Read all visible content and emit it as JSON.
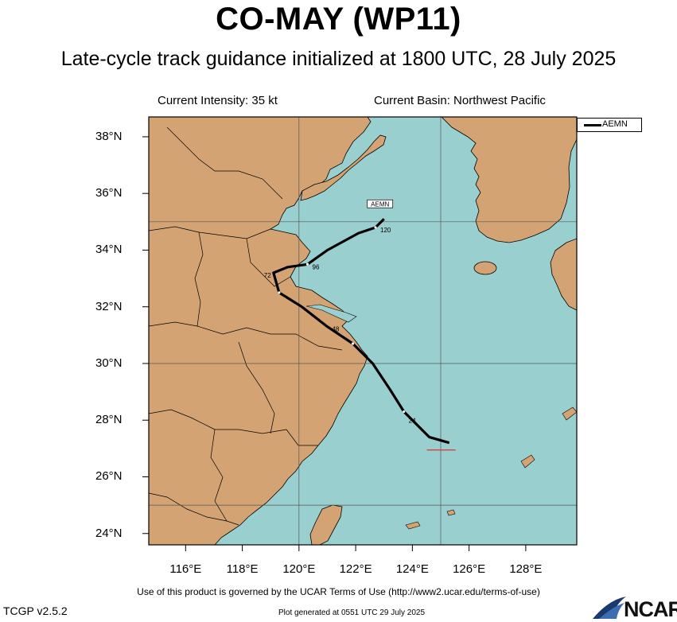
{
  "title": "CO-MAY (WP11)",
  "subtitle": "Late-cycle track guidance initialized at 1800 UTC, 28 July 2025",
  "current_intensity": "Current Intensity: 35 kt",
  "current_basin": "Current Basin: Northwest Pacific",
  "legend": {
    "label": "AEMN"
  },
  "track_label": "AEMN",
  "lat_labels": [
    "38°N",
    "36°N",
    "34°N",
    "32°N",
    "30°N",
    "28°N",
    "26°N",
    "24°N"
  ],
  "lon_labels": [
    "116°E",
    "118°E",
    "120°E",
    "122°E",
    "124°E",
    "126°E",
    "128°E"
  ],
  "footer": {
    "terms": "Use of this product is governed by the UCAR Terms of Use (http://www2.ucar.edu/terms-of-use)",
    "version": "TCGP v2.5.2",
    "generated": "Plot generated at 0551 UTC   29 July 2025",
    "logo": "NCAR"
  },
  "colors": {
    "ocean": "#9acfd0",
    "land": "#d4a373",
    "track": "#000000",
    "current_marker": "#e03030"
  },
  "map_extent": {
    "lon": [
      114.7,
      129.8
    ],
    "lat": [
      23.6,
      38.7
    ]
  },
  "track": {
    "model": "AEMN",
    "points": [
      {
        "lon": 125.3,
        "lat": 27.2,
        "hour": ""
      },
      {
        "lon": 124.6,
        "lat": 27.4,
        "hour": ""
      },
      {
        "lon": 124.2,
        "lat": 27.8,
        "hour": ""
      },
      {
        "lon": 123.7,
        "lat": 28.3,
        "hour": "24"
      },
      {
        "lon": 123.2,
        "lat": 29.1,
        "hour": ""
      },
      {
        "lon": 122.6,
        "lat": 30.0,
        "hour": ""
      },
      {
        "lon": 121.9,
        "lat": 30.7,
        "hour": ""
      },
      {
        "lon": 121.0,
        "lat": 31.3,
        "hour": "48"
      },
      {
        "lon": 120.1,
        "lat": 32.0,
        "hour": ""
      },
      {
        "lon": 119.3,
        "lat": 32.5,
        "hour": ""
      },
      {
        "lon": 119.1,
        "lat": 33.2,
        "hour": "72"
      },
      {
        "lon": 119.6,
        "lat": 33.4,
        "hour": ""
      },
      {
        "lon": 120.3,
        "lat": 33.5,
        "hour": "96"
      },
      {
        "lon": 121.0,
        "lat": 34.0,
        "hour": ""
      },
      {
        "lon": 122.1,
        "lat": 34.6,
        "hour": ""
      },
      {
        "lon": 122.7,
        "lat": 34.8,
        "hour": "120"
      },
      {
        "lon": 123.0,
        "lat": 35.1,
        "hour": ""
      }
    ]
  }
}
